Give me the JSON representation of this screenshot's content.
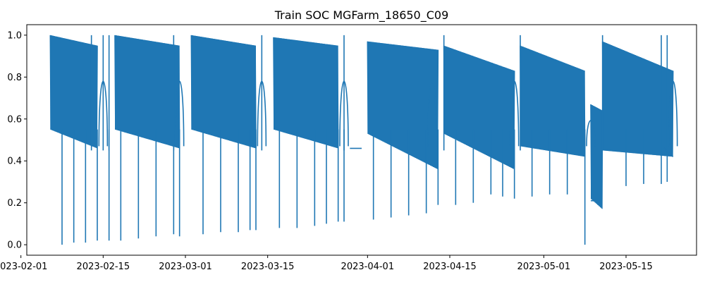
{
  "chart_data": {
    "type": "line",
    "title": "Train SOC MGFarm_18650_C09",
    "xlabel": "",
    "ylabel": "",
    "x_axis": "date",
    "xlim": [
      "2023-02-02",
      "2023-05-27"
    ],
    "ylim": [
      -0.05,
      1.05
    ],
    "grid": false,
    "legend": "none",
    "color": "#1f77b4",
    "x_tick_labels": [
      "2023-02-01",
      "2023-02-15",
      "2023-03-01",
      "2023-03-15",
      "2023-04-01",
      "2023-04-15",
      "2023-05-01",
      "2023-05-15"
    ],
    "y_tick_labels": [
      "0.0",
      "0.2",
      "0.4",
      "0.6",
      "0.8",
      "1.0"
    ],
    "y_ticks": [
      0.0,
      0.2,
      0.4,
      0.6,
      0.8,
      1.0
    ],
    "cycle_segments": [
      {
        "start": "2023-02-06",
        "end": "2023-02-14",
        "top_start": 1.0,
        "top_end": 0.95,
        "bottom_start": 0.55,
        "bottom_end": 0.46
      },
      {
        "start": "2023-02-17",
        "end": "2023-02-28",
        "top_start": 1.0,
        "top_end": 0.95,
        "bottom_start": 0.55,
        "bottom_end": 0.46
      },
      {
        "start": "2023-03-02",
        "end": "2023-03-13",
        "top_start": 1.0,
        "top_end": 0.95,
        "bottom_start": 0.55,
        "bottom_end": 0.46
      },
      {
        "start": "2023-03-16",
        "end": "2023-03-27",
        "top_start": 0.99,
        "top_end": 0.95,
        "bottom_start": 0.55,
        "bottom_end": 0.46
      },
      {
        "start": "2023-04-01",
        "end": "2023-04-13",
        "top_start": 0.97,
        "top_end": 0.93,
        "bottom_start": 0.53,
        "bottom_end": 0.36
      },
      {
        "start": "2023-04-14",
        "end": "2023-04-26",
        "top_start": 0.95,
        "top_end": 0.83,
        "bottom_start": 0.53,
        "bottom_end": 0.36
      },
      {
        "start": "2023-04-27",
        "end": "2023-05-08",
        "top_start": 0.95,
        "top_end": 0.83,
        "bottom_start": 0.47,
        "bottom_end": 0.42
      },
      {
        "start": "2023-05-09",
        "end": "2023-05-11",
        "top_start": 0.67,
        "top_end": 0.64,
        "bottom_start": 0.22,
        "bottom_end": 0.17
      },
      {
        "start": "2023-05-11",
        "end": "2023-05-23",
        "top_start": 0.97,
        "top_end": 0.83,
        "bottom_start": 0.45,
        "bottom_end": 0.42
      }
    ],
    "deep_discharges": [
      {
        "date": "2023-02-08",
        "min": 0.0
      },
      {
        "date": "2023-02-10",
        "min": 0.01
      },
      {
        "date": "2023-02-12",
        "min": 0.01
      },
      {
        "date": "2023-02-14",
        "min": 0.02
      },
      {
        "date": "2023-02-16",
        "min": 0.02
      },
      {
        "date": "2023-02-18",
        "min": 0.02
      },
      {
        "date": "2023-02-21",
        "min": 0.03
      },
      {
        "date": "2023-02-24",
        "min": 0.04
      },
      {
        "date": "2023-02-27",
        "min": 0.05
      },
      {
        "date": "2023-02-28",
        "min": 0.04
      },
      {
        "date": "2023-03-04",
        "min": 0.05
      },
      {
        "date": "2023-03-07",
        "min": 0.06
      },
      {
        "date": "2023-03-10",
        "min": 0.06
      },
      {
        "date": "2023-03-12",
        "min": 0.07
      },
      {
        "date": "2023-03-13",
        "min": 0.07
      },
      {
        "date": "2023-03-17",
        "min": 0.08
      },
      {
        "date": "2023-03-20",
        "min": 0.08
      },
      {
        "date": "2023-03-23",
        "min": 0.09
      },
      {
        "date": "2023-03-25",
        "min": 0.1
      },
      {
        "date": "2023-03-27",
        "min": 0.11
      },
      {
        "date": "2023-03-28",
        "min": 0.11
      },
      {
        "date": "2023-04-02",
        "min": 0.12
      },
      {
        "date": "2023-04-05",
        "min": 0.13
      },
      {
        "date": "2023-04-08",
        "min": 0.14
      },
      {
        "date": "2023-04-11",
        "min": 0.15
      },
      {
        "date": "2023-04-13",
        "min": 0.19
      },
      {
        "date": "2023-04-16",
        "min": 0.19
      },
      {
        "date": "2023-04-19",
        "min": 0.2
      },
      {
        "date": "2023-04-22",
        "min": 0.24
      },
      {
        "date": "2023-04-24",
        "min": 0.23
      },
      {
        "date": "2023-04-26",
        "min": 0.22
      },
      {
        "date": "2023-04-29",
        "min": 0.23
      },
      {
        "date": "2023-05-02",
        "min": 0.24
      },
      {
        "date": "2023-05-05",
        "min": 0.24
      },
      {
        "date": "2023-05-08",
        "min": 0.0
      },
      {
        "date": "2023-05-15",
        "min": 0.28
      },
      {
        "date": "2023-05-18",
        "min": 0.29
      },
      {
        "date": "2023-05-21",
        "min": 0.29
      },
      {
        "date": "2023-05-22",
        "min": 0.3
      }
    ],
    "full_charge_spikes": [
      "2023-02-13",
      "2023-02-15",
      "2023-02-16",
      "2023-02-27",
      "2023-03-14",
      "2023-03-28",
      "2023-04-14",
      "2023-04-27",
      "2023-05-11",
      "2023-05-21",
      "2023-05-22"
    ],
    "rest_bumps": [
      {
        "date": "2023-02-15",
        "peak": 0.87
      },
      {
        "date": "2023-02-28",
        "peak": 0.87
      },
      {
        "date": "2023-03-14",
        "peak": 0.87
      },
      {
        "date": "2023-03-28",
        "peak": 0.87
      },
      {
        "date": "2023-04-12",
        "peak": 0.87
      },
      {
        "date": "2023-04-26",
        "peak": 0.87
      },
      {
        "date": "2023-05-09",
        "peak": 0.62
      },
      {
        "date": "2023-05-23",
        "peak": 0.87
      }
    ],
    "plateaus": [
      {
        "start": "2023-03-29",
        "end": "2023-03-31",
        "value": 0.46
      },
      {
        "start": "2023-05-09",
        "end": "2023-05-10",
        "value": 0.21
      }
    ],
    "end_value": 0.46
  }
}
